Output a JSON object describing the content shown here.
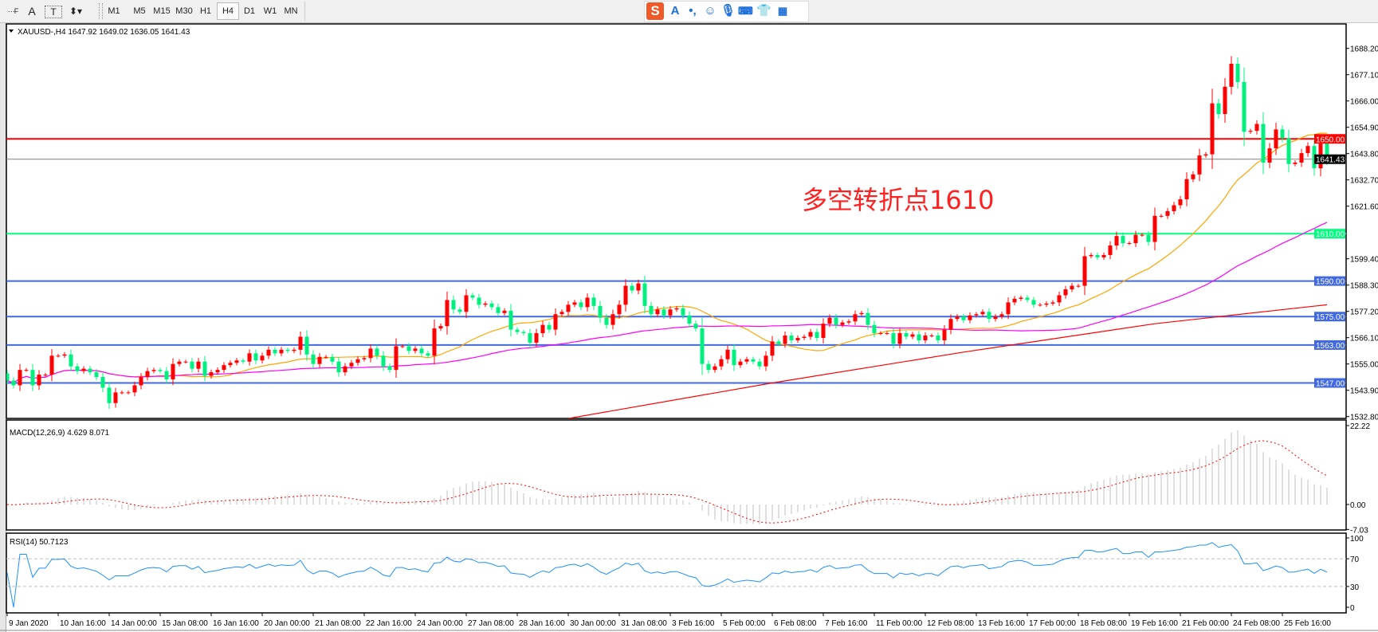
{
  "toolbar": {
    "icons": [
      "period-separator-icon",
      "text-A-icon",
      "text-label-icon",
      "arrows-icon"
    ],
    "timeframes": [
      "M1",
      "M5",
      "M15",
      "M30",
      "H1",
      "H4",
      "D1",
      "W1",
      "MN"
    ],
    "selected_timeframe": "H4"
  },
  "ime_bar": {
    "icons": [
      "sogou-logo-icon",
      "chinese-english-icon",
      "punctuation-icon",
      "emoji-icon",
      "microphone-icon",
      "keyboard-icon",
      "skin-icon",
      "toolbox-icon"
    ],
    "lang_label": "A"
  },
  "chart_data": {
    "type": "candlestick",
    "title": "XAUUSD-,H4  1647.92 1649.02 1636.05 1641.43",
    "symbol": "XAUUSD-,H4",
    "last_ohlc": {
      "open": 1647.92,
      "high": 1649.02,
      "low": 1636.05,
      "close": 1641.43
    },
    "first_open": 1551,
    "closes": [
      1548,
      1546,
      1552.5,
      1552.5,
      1546,
      1550.5,
      1550.5,
      1558.5,
      1558.5,
      1559,
      1554,
      1552,
      1553,
      1551.5,
      1549.5,
      1545,
      1538.5,
      1543,
      1543,
      1543,
      1546,
      1549.5,
      1552,
      1552.5,
      1552,
      1548.5,
      1555,
      1556,
      1556,
      1553,
      1556,
      1550,
      1551.5,
      1552.5,
      1554.5,
      1555.5,
      1556.5,
      1556,
      1559.5,
      1556.5,
      1558.5,
      1561,
      1559.5,
      1561,
      1560.5,
      1561,
      1566.5,
      1559,
      1555,
      1558,
      1558,
      1556,
      1551.5,
      1554,
      1555.5,
      1557,
      1557.5,
      1561.5,
      1558.5,
      1554,
      1552.5,
      1562.5,
      1562.5,
      1560.5,
      1561.5,
      1559.5,
      1558.5,
      1570,
      1571,
      1582,
      1578,
      1577,
      1584,
      1583,
      1580,
      1580.5,
      1579,
      1576.5,
      1577.5,
      1569.5,
      1568.5,
      1568,
      1564,
      1568,
      1571.5,
      1569.5,
      1576,
      1577,
      1580,
      1581,
      1579,
      1583,
      1579.5,
      1574.5,
      1571.5,
      1576,
      1580,
      1588,
      1586,
      1589,
      1579.5,
      1576,
      1578,
      1575.5,
      1578,
      1578.5,
      1575.5,
      1572,
      1570,
      1555,
      1552.5,
      1554,
      1557,
      1561,
      1554.5,
      1556,
      1557,
      1556,
      1554,
      1558.5,
      1564.5,
      1563.5,
      1567,
      1565,
      1566,
      1566.5,
      1568.5,
      1566,
      1572,
      1574.5,
      1571.5,
      1572.5,
      1573,
      1576,
      1576.5,
      1571.5,
      1568,
      1568,
      1568,
      1563.5,
      1568,
      1566.5,
      1567.5,
      1565,
      1567,
      1567,
      1565,
      1569.5,
      1574,
      1575,
      1573.5,
      1575.5,
      1576,
      1577,
      1574,
      1575,
      1576,
      1581,
      1582.5,
      1583,
      1582,
      1580,
      1580,
      1580.5,
      1581,
      1584,
      1586.5,
      1588,
      1588,
      1600.5,
      1601,
      1600,
      1601,
      1605,
      1609,
      1606,
      1606,
      1609.5,
      1609.5,
      1606.5,
      1617.5,
      1617.5,
      1619.5,
      1622,
      1624.5,
      1633,
      1635,
      1643,
      1643.5,
      1665,
      1660.5,
      1672,
      1681.7,
      1674,
      1653,
      1653.4,
      1656.3,
      1640,
      1646,
      1654,
      1650.3,
      1639.4,
      1640,
      1644,
      1647,
      1637.6,
      1648,
      1641.43
    ],
    "moving_averages": [
      {
        "color": "#ffa500",
        "period": 20
      },
      {
        "color": "#ff00ff",
        "period": 60
      },
      {
        "color": "#ff0000",
        "points": [
          [
            88,
            1532
          ],
          [
            120,
            1547
          ],
          [
            150,
            1560
          ],
          [
            180,
            1572
          ],
          [
            207,
            1580
          ]
        ]
      }
    ],
    "price_ticks": [
      "1688.20",
      "1677.10",
      "1666.00",
      "1654.90",
      "1643.80",
      "1632.70",
      "1621.60",
      "1599.40",
      "1588.30",
      "1577.20",
      "1566.10",
      "1555.00",
      "1543.90",
      "1532.80"
    ],
    "price_range": [
      1532.0,
      1698.5
    ],
    "horizontal_lines": [
      {
        "price": 1650.0,
        "label": "1650.00",
        "color": "#ff0000"
      },
      {
        "price": 1641.43,
        "label": "1641.43",
        "color": "#808080",
        "label_bg": "#000000"
      },
      {
        "price": 1610.0,
        "label": "1610.00",
        "color": "#00ff7f"
      },
      {
        "price": 1590.0,
        "label": "1590.00",
        "color": "#4169e1"
      },
      {
        "price": 1575.0,
        "label": "1575.00",
        "color": "#4169e1"
      },
      {
        "price": 1563.0,
        "label": "1563.00",
        "color": "#4169e1"
      },
      {
        "price": 1547.0,
        "label": "1547.00",
        "color": "#4169e1"
      }
    ],
    "annotation": {
      "text": "多空转折点1610",
      "color": "#ff2020"
    },
    "colors": {
      "up": "#ff0000",
      "down": "#00f080",
      "histogram": "#c0c0c0",
      "signal": "#ff0000",
      "rsi": "#1e90ff"
    },
    "time_labels": [
      "9 Jan 2020",
      "10 Jan 16:00",
      "14 Jan 00:00",
      "15 Jan 08:00",
      "16 Jan 16:00",
      "20 Jan 00:00",
      "21 Jan 08:00",
      "22 Jan 16:00",
      "24 Jan 00:00",
      "27 Jan 08:00",
      "28 Jan 16:00",
      "30 Jan 00:00",
      "31 Jan 08:00",
      "3 Feb 16:00",
      "5 Feb 00:00",
      "6 Feb 08:00",
      "7 Feb 16:00",
      "11 Feb 00:00",
      "12 Feb 08:00",
      "13 Feb 16:00",
      "17 Feb 00:00",
      "18 Feb 08:00",
      "19 Feb 16:00",
      "21 Feb 00:00",
      "24 Feb 08:00",
      "25 Feb 16:00"
    ],
    "macd": {
      "title": "MACD(12,26,9) 4.629 8.071",
      "params": [
        12,
        26,
        9
      ],
      "ticks": [
        "22.22",
        "0.00",
        "-7.03"
      ],
      "range": [
        -7.03,
        22.22
      ]
    },
    "rsi": {
      "title": "RSI(14) 50.7123",
      "period": 14,
      "ticks": [
        "100",
        "70",
        "30",
        "0"
      ],
      "levels": [
        70,
        30
      ]
    }
  }
}
